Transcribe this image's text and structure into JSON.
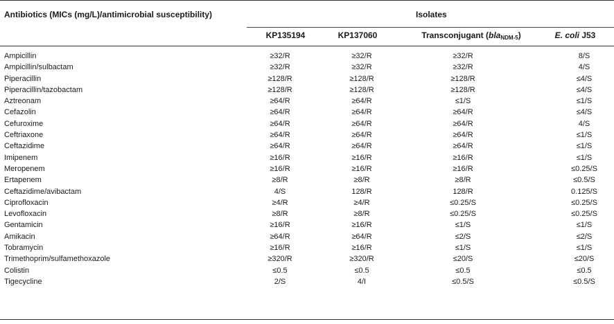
{
  "table": {
    "title": "Antibiotics (MICs (mg/L)/antimicrobial susceptibility)",
    "group_header": "Isolates",
    "columns": {
      "kp1": "KP135194",
      "kp2": "KP137060",
      "trans_prefix": "Transconjugant (",
      "trans_gene": "bla",
      "trans_sub": "NDM-5",
      "trans_suffix": ")",
      "ecoli_italic": "E. coli",
      "ecoli_rest": " J53"
    },
    "rows": [
      {
        "antibiotic": "Ampicillin",
        "kp135194": "≥32/R",
        "kp137060": "≥32/R",
        "transconjugant": "≥32/R",
        "ecoli": "8/S"
      },
      {
        "antibiotic": "Ampicillin/sulbactam",
        "kp135194": "≥32/R",
        "kp137060": "≥32/R",
        "transconjugant": "≥32/R",
        "ecoli": "4/S"
      },
      {
        "antibiotic": "Piperacillin",
        "kp135194": "≥128/R",
        "kp137060": "≥128/R",
        "transconjugant": "≥128/R",
        "ecoli": "≤4/S"
      },
      {
        "antibiotic": "Piperacillin/tazobactam",
        "kp135194": "≥128/R",
        "kp137060": "≥128/R",
        "transconjugant": "≥128/R",
        "ecoli": "≤4/S"
      },
      {
        "antibiotic": "Aztreonam",
        "kp135194": "≥64/R",
        "kp137060": "≥64/R",
        "transconjugant": "≤1/S",
        "ecoli": "≤1/S"
      },
      {
        "antibiotic": "Cefazolin",
        "kp135194": "≥64/R",
        "kp137060": "≥64/R",
        "transconjugant": "≥64/R",
        "ecoli": "≤4/S"
      },
      {
        "antibiotic": "Cefuroxime",
        "kp135194": "≥64/R",
        "kp137060": "≥64/R",
        "transconjugant": "≥64/R",
        "ecoli": "4/S"
      },
      {
        "antibiotic": "Ceftriaxone",
        "kp135194": "≥64/R",
        "kp137060": "≥64/R",
        "transconjugant": "≥64/R",
        "ecoli": "≤1/S"
      },
      {
        "antibiotic": "Ceftazidime",
        "kp135194": "≥64/R",
        "kp137060": "≥64/R",
        "transconjugant": "≥64/R",
        "ecoli": "≤1/S"
      },
      {
        "antibiotic": "Imipenem",
        "kp135194": "≥16/R",
        "kp137060": "≥16/R",
        "transconjugant": "≥16/R",
        "ecoli": "≤1/S"
      },
      {
        "antibiotic": "Meropenem",
        "kp135194": "≥16/R",
        "kp137060": "≥16/R",
        "transconjugant": "≥16/R",
        "ecoli": "≤0.25/S"
      },
      {
        "antibiotic": "Ertapenem",
        "kp135194": "≥8/R",
        "kp137060": "≥8/R",
        "transconjugant": "≥8/R",
        "ecoli": "≤0.5/S"
      },
      {
        "antibiotic": "Ceftazidime/avibactam",
        "kp135194": "4/S",
        "kp137060": "128/R",
        "transconjugant": "128/R",
        "ecoli": "0.125/S"
      },
      {
        "antibiotic": "Ciprofloxacin",
        "kp135194": "≥4/R",
        "kp137060": "≥4/R",
        "transconjugant": "≤0.25/S",
        "ecoli": "≤0.25/S"
      },
      {
        "antibiotic": "Levofloxacin",
        "kp135194": "≥8/R",
        "kp137060": "≥8/R",
        "transconjugant": "≤0.25/S",
        "ecoli": "≤0.25/S"
      },
      {
        "antibiotic": "Gentamicin",
        "kp135194": "≥16/R",
        "kp137060": "≥16/R",
        "transconjugant": "≤1/S",
        "ecoli": "≤1/S"
      },
      {
        "antibiotic": "Amikacin",
        "kp135194": "≥64/R",
        "kp137060": "≥64/R",
        "transconjugant": "≤2/S",
        "ecoli": "≤2/S"
      },
      {
        "antibiotic": "Tobramycin",
        "kp135194": "≥16/R",
        "kp137060": "≥16/R",
        "transconjugant": "≤1/S",
        "ecoli": "≤1/S"
      },
      {
        "antibiotic": "Trimethoprim/sulfamethoxazole",
        "kp135194": "≥320/R",
        "kp137060": "≥320/R",
        "transconjugant": "≤20/S",
        "ecoli": "≤20/S"
      },
      {
        "antibiotic": "Colistin",
        "kp135194": "≤0.5",
        "kp137060": "≤0.5",
        "transconjugant": "≤0.5",
        "ecoli": "≤0.5"
      },
      {
        "antibiotic": "Tigecycline",
        "kp135194": "2/S",
        "kp137060": "4/I",
        "transconjugant": "≤0.5/S",
        "ecoli": "≤0.5/S"
      }
    ]
  }
}
